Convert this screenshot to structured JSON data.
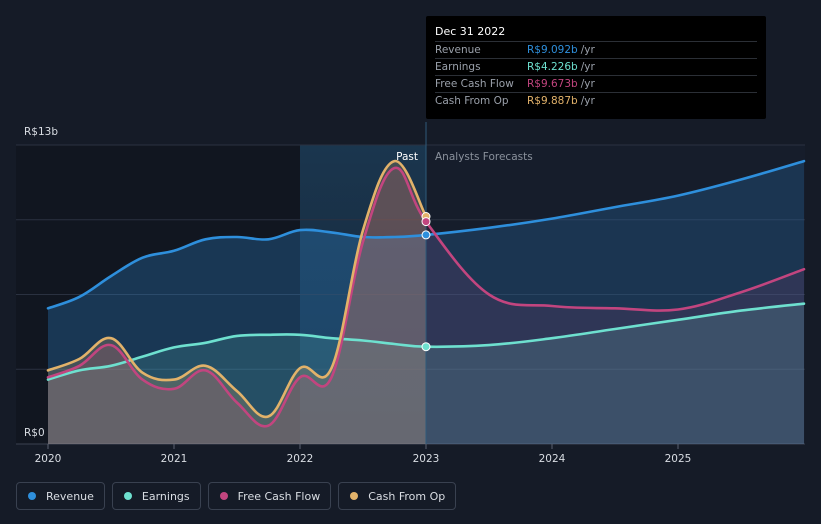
{
  "colors": {
    "revenue": "#2e8fdc",
    "earnings": "#6ee0cf",
    "fcf": "#c2457f",
    "cfo": "#e2b26a",
    "background": "#151b27"
  },
  "tooltip": {
    "date": "Dec 31 2022",
    "unit": "/yr",
    "rows": [
      {
        "label": "Revenue",
        "value": "R$9.092b",
        "color": "#2e8fdc"
      },
      {
        "label": "Earnings",
        "value": "R$4.226b",
        "color": "#6ee0cf"
      },
      {
        "label": "Free Cash Flow",
        "value": "R$9.673b",
        "color": "#c2457f"
      },
      {
        "label": "Cash From Op",
        "value": "R$9.887b",
        "color": "#e2b26a"
      }
    ]
  },
  "legend": [
    {
      "label": "Revenue",
      "color": "#2e8fdc"
    },
    {
      "label": "Earnings",
      "color": "#6ee0cf"
    },
    {
      "label": "Free Cash Flow",
      "color": "#c2457f"
    },
    {
      "label": "Cash From Op",
      "color": "#e2b26a"
    }
  ],
  "chart_data": {
    "type": "line",
    "title": "",
    "xlabel": "",
    "ylabel": "",
    "y_top_label": "R$13b",
    "y_bottom_label": "R$0",
    "ylim": [
      0,
      13
    ],
    "xlim": [
      2020,
      2026.0
    ],
    "x_ticks": [
      2020,
      2021,
      2022,
      2023,
      2024,
      2025
    ],
    "x_tick_labels": [
      "2020",
      "2021",
      "2022",
      "2023",
      "2024",
      "2025"
    ],
    "past_label": "Past",
    "forecast_label": "Analysts Forecasts",
    "divider_x": 2023.0,
    "highlight_start_x": 2022.0,
    "series": [
      {
        "name": "Revenue",
        "x": [
          2020.0,
          2020.25,
          2020.5,
          2020.75,
          2021.0,
          2021.25,
          2021.5,
          2021.75,
          2022.0,
          2022.25,
          2022.5,
          2022.75,
          2023.0,
          2023.5,
          2024.0,
          2024.5,
          2025.0,
          2025.5,
          2026.0
        ],
        "values": [
          5.9,
          6.4,
          7.3,
          8.1,
          8.4,
          8.9,
          9.0,
          8.9,
          9.3,
          9.2,
          9.0,
          9.0,
          9.09,
          9.4,
          9.8,
          10.3,
          10.8,
          11.5,
          12.3
        ]
      },
      {
        "name": "Earnings",
        "x": [
          2020.0,
          2020.25,
          2020.5,
          2020.75,
          2021.0,
          2021.25,
          2021.5,
          2021.75,
          2022.0,
          2022.25,
          2022.5,
          2022.75,
          2023.0,
          2023.5,
          2024.0,
          2024.5,
          2025.0,
          2025.5,
          2026.0
        ],
        "values": [
          2.8,
          3.2,
          3.4,
          3.8,
          4.2,
          4.4,
          4.7,
          4.75,
          4.75,
          4.6,
          4.5,
          4.35,
          4.23,
          4.3,
          4.6,
          5.0,
          5.4,
          5.8,
          6.1
        ]
      },
      {
        "name": "Free Cash Flow",
        "x": [
          2020.0,
          2020.25,
          2020.5,
          2020.75,
          2021.0,
          2021.25,
          2021.5,
          2021.75,
          2022.0,
          2022.25,
          2022.5,
          2022.75,
          2023.0,
          2023.5,
          2024.0,
          2024.5,
          2025.0,
          2025.5,
          2026.0
        ],
        "values": [
          2.9,
          3.4,
          4.3,
          2.8,
          2.4,
          3.2,
          1.8,
          0.8,
          2.9,
          2.9,
          8.8,
          12.0,
          9.67,
          6.5,
          6.0,
          5.9,
          5.85,
          6.6,
          7.6
        ]
      },
      {
        "name": "Cash From Op",
        "x": [
          2020.0,
          2020.25,
          2020.5,
          2020.75,
          2021.0,
          2021.25,
          2021.5,
          2021.75,
          2022.0,
          2022.25,
          2022.5,
          2022.75,
          2023.0
        ],
        "values": [
          3.2,
          3.7,
          4.6,
          3.1,
          2.8,
          3.4,
          2.3,
          1.2,
          3.3,
          3.3,
          9.3,
          12.3,
          9.89
        ]
      }
    ]
  }
}
